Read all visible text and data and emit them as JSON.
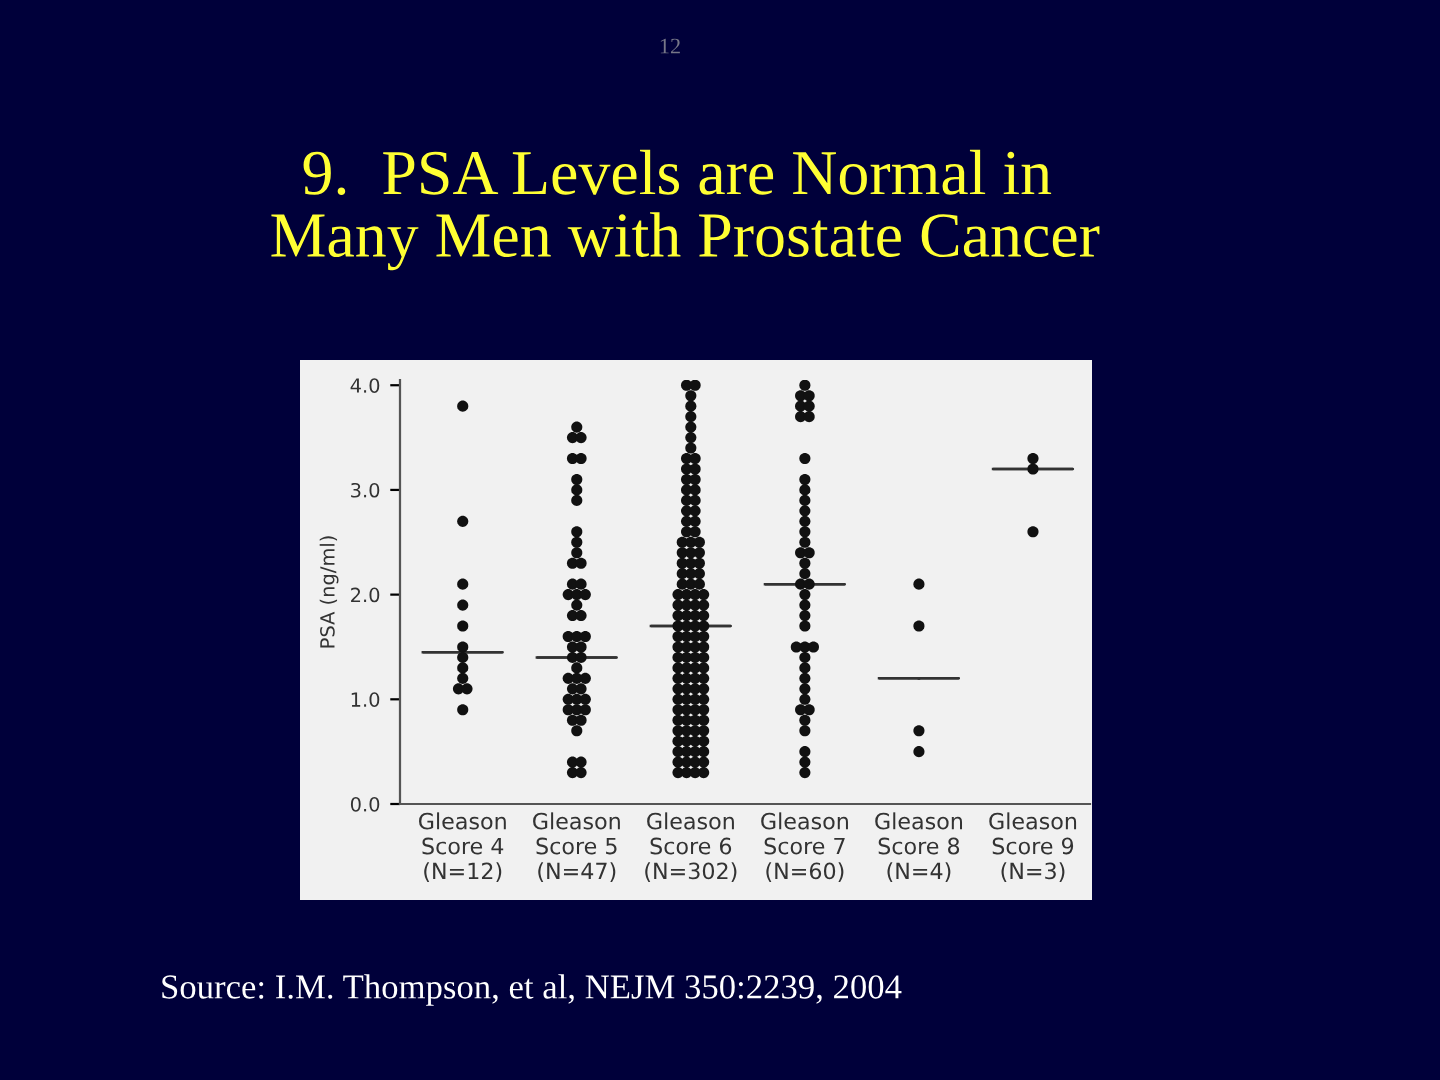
{
  "chart_data": {
    "type": "scatter",
    "title": "9.  PSA Levels are Normal in\n Many Men with Prostate Cancer",
    "ylabel": "PSA (ng/ml)",
    "categories": [
      "Gleason\nScore 4\n(N=12)",
      "Gleason\nScore 5\n(N=47)",
      "Gleason\nScore 6\n(N=302)",
      "Gleason\nScore 7\n(N=60)",
      "Gleason\nScore 8\n(N=4)",
      "Gleason\nScore 9\n(N=3)"
    ],
    "ylim": [
      0,
      4.05
    ],
    "yticks": [
      {
        "value": 0,
        "label": "0.0"
      },
      {
        "value": 1,
        "label": "1.0"
      },
      {
        "value": 2,
        "label": "2.0"
      },
      {
        "value": 3,
        "label": "3.0"
      },
      {
        "value": 4,
        "label": "4.0"
      }
    ],
    "series": [
      {
        "marker": "circle",
        "color": "#111111",
        "x": [
          "Gleason\nScore 4\n(N=12)",
          "Gleason\nScore 4\n(N=12)",
          "Gleason\nScore 4\n(N=12)",
          "Gleason\nScore 4\n(N=12)",
          "Gleason\nScore 4\n(N=12)",
          "Gleason\nScore 4\n(N=12)",
          "Gleason\nScore 4\n(N=12)",
          "Gleason\nScore 4\n(N=12)",
          "Gleason\nScore 4\n(N=12)",
          "Gleason\nScore 4\n(N=12)",
          "Gleason\nScore 4\n(N=12)",
          "Gleason\nScore 4\n(N=12)"
        ],
        "values": [
          3.8,
          2.7,
          2.1,
          1.9,
          1.7,
          1.5,
          1.4,
          1.3,
          1.2,
          1.1,
          1.1,
          0.9
        ]
      },
      {
        "marker": "circle",
        "color": "#111111",
        "x": [
          "Gleason\nScore 5\n(N=47)",
          "Gleason\nScore 5\n(N=47)",
          "Gleason\nScore 5\n(N=47)",
          "Gleason\nScore 5\n(N=47)",
          "Gleason\nScore 5\n(N=47)",
          "Gleason\nScore 5\n(N=47)",
          "Gleason\nScore 5\n(N=47)",
          "Gleason\nScore 5\n(N=47)",
          "Gleason\nScore 5\n(N=47)",
          "Gleason\nScore 5\n(N=47)",
          "Gleason\nScore 5\n(N=47)",
          "Gleason\nScore 5\n(N=47)",
          "Gleason\nScore 5\n(N=47)",
          "Gleason\nScore 5\n(N=47)",
          "Gleason\nScore 5\n(N=47)",
          "Gleason\nScore 5\n(N=47)",
          "Gleason\nScore 5\n(N=47)",
          "Gleason\nScore 5\n(N=47)",
          "Gleason\nScore 5\n(N=47)",
          "Gleason\nScore 5\n(N=47)",
          "Gleason\nScore 5\n(N=47)",
          "Gleason\nScore 5\n(N=47)",
          "Gleason\nScore 5\n(N=47)",
          "Gleason\nScore 5\n(N=47)",
          "Gleason\nScore 5\n(N=47)",
          "Gleason\nScore 5\n(N=47)",
          "Gleason\nScore 5\n(N=47)",
          "Gleason\nScore 5\n(N=47)",
          "Gleason\nScore 5\n(N=47)",
          "Gleason\nScore 5\n(N=47)",
          "Gleason\nScore 5\n(N=47)",
          "Gleason\nScore 5\n(N=47)",
          "Gleason\nScore 5\n(N=47)",
          "Gleason\nScore 5\n(N=47)",
          "Gleason\nScore 5\n(N=47)",
          "Gleason\nScore 5\n(N=47)",
          "Gleason\nScore 5\n(N=47)",
          "Gleason\nScore 5\n(N=47)",
          "Gleason\nScore 5\n(N=47)",
          "Gleason\nScore 5\n(N=47)",
          "Gleason\nScore 5\n(N=47)",
          "Gleason\nScore 5\n(N=47)",
          "Gleason\nScore 5\n(N=47)",
          "Gleason\nScore 5\n(N=47)",
          "Gleason\nScore 5\n(N=47)",
          "Gleason\nScore 5\n(N=47)",
          "Gleason\nScore 5\n(N=47)"
        ],
        "values": [
          3.6,
          3.5,
          3.5,
          3.3,
          3.3,
          3.1,
          3.0,
          2.9,
          2.6,
          2.5,
          2.4,
          2.3,
          2.3,
          2.1,
          2.1,
          2.0,
          2.0,
          2.0,
          1.9,
          1.8,
          1.8,
          1.6,
          1.6,
          1.6,
          1.5,
          1.5,
          1.4,
          1.4,
          1.3,
          1.2,
          1.2,
          1.2,
          1.1,
          1.1,
          1.0,
          1.0,
          1.0,
          0.9,
          0.9,
          0.9,
          0.8,
          0.8,
          0.7,
          0.4,
          0.4,
          0.3,
          0.3
        ]
      },
      {
        "marker": "circle",
        "color": "#111111",
        "x": [
          "Gleason\nScore 6\n(N=302)",
          "Gleason\nScore 6\n(N=302)",
          "Gleason\nScore 6\n(N=302)",
          "Gleason\nScore 6\n(N=302)",
          "Gleason\nScore 6\n(N=302)",
          "Gleason\nScore 6\n(N=302)",
          "Gleason\nScore 6\n(N=302)",
          "Gleason\nScore 6\n(N=302)",
          "Gleason\nScore 6\n(N=302)",
          "Gleason\nScore 6\n(N=302)",
          "Gleason\nScore 6\n(N=302)",
          "Gleason\nScore 6\n(N=302)",
          "Gleason\nScore 6\n(N=302)",
          "Gleason\nScore 6\n(N=302)",
          "Gleason\nScore 6\n(N=302)",
          "Gleason\nScore 6\n(N=302)",
          "Gleason\nScore 6\n(N=302)",
          "Gleason\nScore 6\n(N=302)",
          "Gleason\nScore 6\n(N=302)",
          "Gleason\nScore 6\n(N=302)",
          "Gleason\nScore 6\n(N=302)",
          "Gleason\nScore 6\n(N=302)",
          "Gleason\nScore 6\n(N=302)",
          "Gleason\nScore 6\n(N=302)",
          "Gleason\nScore 6\n(N=302)",
          "Gleason\nScore 6\n(N=302)",
          "Gleason\nScore 6\n(N=302)",
          "Gleason\nScore 6\n(N=302)",
          "Gleason\nScore 6\n(N=302)",
          "Gleason\nScore 6\n(N=302)",
          "Gleason\nScore 6\n(N=302)",
          "Gleason\nScore 6\n(N=302)",
          "Gleason\nScore 6\n(N=302)",
          "Gleason\nScore 6\n(N=302)",
          "Gleason\nScore 6\n(N=302)",
          "Gleason\nScore 6\n(N=302)",
          "Gleason\nScore 6\n(N=302)",
          "Gleason\nScore 6\n(N=302)",
          "Gleason\nScore 6\n(N=302)",
          "Gleason\nScore 6\n(N=302)",
          "Gleason\nScore 6\n(N=302)",
          "Gleason\nScore 6\n(N=302)",
          "Gleason\nScore 6\n(N=302)",
          "Gleason\nScore 6\n(N=302)",
          "Gleason\nScore 6\n(N=302)",
          "Gleason\nScore 6\n(N=302)",
          "Gleason\nScore 6\n(N=302)",
          "Gleason\nScore 6\n(N=302)",
          "Gleason\nScore 6\n(N=302)",
          "Gleason\nScore 6\n(N=302)",
          "Gleason\nScore 6\n(N=302)",
          "Gleason\nScore 6\n(N=302)",
          "Gleason\nScore 6\n(N=302)",
          "Gleason\nScore 6\n(N=302)",
          "Gleason\nScore 6\n(N=302)",
          "Gleason\nScore 6\n(N=302)",
          "Gleason\nScore 6\n(N=302)",
          "Gleason\nScore 6\n(N=302)",
          "Gleason\nScore 6\n(N=302)",
          "Gleason\nScore 6\n(N=302)",
          "Gleason\nScore 6\n(N=302)",
          "Gleason\nScore 6\n(N=302)",
          "Gleason\nScore 6\n(N=302)",
          "Gleason\nScore 6\n(N=302)",
          "Gleason\nScore 6\n(N=302)",
          "Gleason\nScore 6\n(N=302)",
          "Gleason\nScore 6\n(N=302)",
          "Gleason\nScore 6\n(N=302)",
          "Gleason\nScore 6\n(N=302)",
          "Gleason\nScore 6\n(N=302)",
          "Gleason\nScore 6\n(N=302)",
          "Gleason\nScore 6\n(N=302)",
          "Gleason\nScore 6\n(N=302)",
          "Gleason\nScore 6\n(N=302)",
          "Gleason\nScore 6\n(N=302)",
          "Gleason\nScore 6\n(N=302)",
          "Gleason\nScore 6\n(N=302)",
          "Gleason\nScore 6\n(N=302)",
          "Gleason\nScore 6\n(N=302)",
          "Gleason\nScore 6\n(N=302)",
          "Gleason\nScore 6\n(N=302)",
          "Gleason\nScore 6\n(N=302)",
          "Gleason\nScore 6\n(N=302)",
          "Gleason\nScore 6\n(N=302)",
          "Gleason\nScore 6\n(N=302)",
          "Gleason\nScore 6\n(N=302)",
          "Gleason\nScore 6\n(N=302)",
          "Gleason\nScore 6\n(N=302)",
          "Gleason\nScore 6\n(N=302)",
          "Gleason\nScore 6\n(N=302)",
          "Gleason\nScore 6\n(N=302)",
          "Gleason\nScore 6\n(N=302)",
          "Gleason\nScore 6\n(N=302)",
          "Gleason\nScore 6\n(N=302)",
          "Gleason\nScore 6\n(N=302)",
          "Gleason\nScore 6\n(N=302)",
          "Gleason\nScore 6\n(N=302)",
          "Gleason\nScore 6\n(N=302)",
          "Gleason\nScore 6\n(N=302)",
          "Gleason\nScore 6\n(N=302)",
          "Gleason\nScore 6\n(N=302)",
          "Gleason\nScore 6\n(N=302)",
          "Gleason\nScore 6\n(N=302)",
          "Gleason\nScore 6\n(N=302)",
          "Gleason\nScore 6\n(N=302)",
          "Gleason\nScore 6\n(N=302)",
          "Gleason\nScore 6\n(N=302)",
          "Gleason\nScore 6\n(N=302)",
          "Gleason\nScore 6\n(N=302)",
          "Gleason\nScore 6\n(N=302)",
          "Gleason\nScore 6\n(N=302)"
        ],
        "values": [
          0.3,
          0.3,
          0.3,
          0.3,
          0.4,
          0.4,
          0.4,
          0.4,
          0.5,
          0.5,
          0.5,
          0.5,
          0.6,
          0.6,
          0.6,
          0.6,
          0.7,
          0.7,
          0.7,
          0.7,
          0.8,
          0.8,
          0.8,
          0.8,
          0.9,
          0.9,
          0.9,
          0.9,
          1.0,
          1.0,
          1.0,
          1.0,
          1.1,
          1.1,
          1.1,
          1.1,
          1.2,
          1.2,
          1.2,
          1.2,
          1.3,
          1.3,
          1.3,
          1.3,
          1.4,
          1.4,
          1.4,
          1.4,
          1.5,
          1.5,
          1.5,
          1.5,
          1.6,
          1.6,
          1.6,
          1.6,
          1.7,
          1.7,
          1.7,
          1.7,
          1.8,
          1.8,
          1.8,
          1.8,
          1.9,
          1.9,
          1.9,
          1.9,
          2.0,
          2.0,
          2.0,
          2.0,
          2.1,
          2.1,
          2.1,
          2.2,
          2.2,
          2.2,
          2.3,
          2.3,
          2.3,
          2.4,
          2.4,
          2.4,
          2.5,
          2.5,
          2.5,
          2.6,
          2.6,
          2.7,
          2.7,
          2.8,
          2.8,
          2.9,
          2.9,
          3.0,
          3.0,
          3.1,
          3.1,
          3.2,
          3.2,
          3.3,
          3.3,
          3.4,
          3.5,
          3.6,
          3.7,
          3.8,
          3.9,
          4.0,
          4.0
        ]
      },
      {
        "marker": "circle",
        "color": "#111111",
        "x": [
          "Gleason\nScore 7\n(N=60)",
          "Gleason\nScore 7\n(N=60)",
          "Gleason\nScore 7\n(N=60)",
          "Gleason\nScore 7\n(N=60)",
          "Gleason\nScore 7\n(N=60)",
          "Gleason\nScore 7\n(N=60)",
          "Gleason\nScore 7\n(N=60)",
          "Gleason\nScore 7\n(N=60)",
          "Gleason\nScore 7\n(N=60)",
          "Gleason\nScore 7\n(N=60)",
          "Gleason\nScore 7\n(N=60)",
          "Gleason\nScore 7\n(N=60)",
          "Gleason\nScore 7\n(N=60)",
          "Gleason\nScore 7\n(N=60)",
          "Gleason\nScore 7\n(N=60)",
          "Gleason\nScore 7\n(N=60)",
          "Gleason\nScore 7\n(N=60)",
          "Gleason\nScore 7\n(N=60)",
          "Gleason\nScore 7\n(N=60)",
          "Gleason\nScore 7\n(N=60)",
          "Gleason\nScore 7\n(N=60)",
          "Gleason\nScore 7\n(N=60)",
          "Gleason\nScore 7\n(N=60)",
          "Gleason\nScore 7\n(N=60)",
          "Gleason\nScore 7\n(N=60)",
          "Gleason\nScore 7\n(N=60)",
          "Gleason\nScore 7\n(N=60)",
          "Gleason\nScore 7\n(N=60)",
          "Gleason\nScore 7\n(N=60)",
          "Gleason\nScore 7\n(N=60)",
          "Gleason\nScore 7\n(N=60)",
          "Gleason\nScore 7\n(N=60)",
          "Gleason\nScore 7\n(N=60)",
          "Gleason\nScore 7\n(N=60)",
          "Gleason\nScore 7\n(N=60)",
          "Gleason\nScore 7\n(N=60)",
          "Gleason\nScore 7\n(N=60)",
          "Gleason\nScore 7\n(N=60)",
          "Gleason\nScore 7\n(N=60)",
          "Gleason\nScore 7\n(N=60)"
        ],
        "values": [
          4.0,
          3.9,
          3.9,
          3.8,
          3.8,
          3.7,
          3.7,
          3.3,
          3.1,
          3.0,
          2.9,
          2.8,
          2.7,
          2.6,
          2.5,
          2.4,
          2.4,
          2.3,
          2.2,
          2.1,
          2.1,
          2.0,
          1.9,
          1.8,
          1.7,
          1.5,
          1.5,
          1.5,
          1.4,
          1.3,
          1.2,
          1.1,
          1.0,
          0.9,
          0.9,
          0.8,
          0.7,
          0.5,
          0.4,
          0.3
        ]
      },
      {
        "marker": "circle",
        "color": "#111111",
        "x": [
          "Gleason\nScore 8\n(N=4)",
          "Gleason\nScore 8\n(N=4)",
          "Gleason\nScore 8\n(N=4)",
          "Gleason\nScore 8\n(N=4)"
        ],
        "values": [
          2.1,
          1.7,
          0.7,
          0.5
        ]
      },
      {
        "marker": "circle",
        "color": "#111111",
        "x": [
          "Gleason\nScore 9\n(N=3)",
          "Gleason\nScore 9\n(N=3)",
          "Gleason\nScore 9\n(N=3)"
        ],
        "values": [
          3.3,
          3.2,
          2.6
        ]
      },
      {
        "type": "box",
        "color": "#333333",
        "boxes": [
          {
            "low": 1.45,
            "q1": 1.45,
            "median": 1.45,
            "q3": 1.45,
            "high": 1.45
          },
          {
            "low": 1.4,
            "q1": 1.4,
            "median": 1.4,
            "q3": 1.4,
            "high": 1.4
          },
          {
            "low": 1.7,
            "q1": 1.7,
            "median": 1.7,
            "q3": 1.7,
            "high": 1.7
          },
          {
            "low": 2.1,
            "q1": 2.1,
            "median": 2.1,
            "q3": 2.1,
            "high": 2.1
          },
          {
            "low": 1.2,
            "q1": 1.2,
            "median": 1.2,
            "q3": 1.2,
            "high": 1.2
          },
          {
            "low": 3.2,
            "q1": 3.2,
            "median": 3.2,
            "q3": 3.2,
            "high": 3.2
          }
        ]
      }
    ],
    "annotations": [
      "12",
      "Source: I.M. Thompson, et al, NEJM 350:2239, 2004"
    ]
  }
}
